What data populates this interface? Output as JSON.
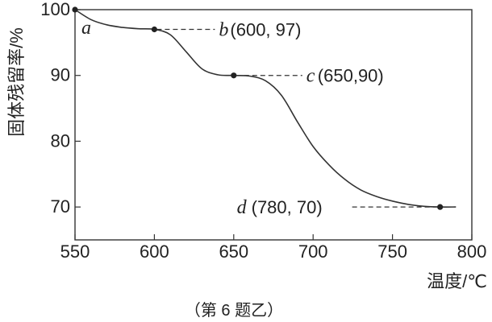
{
  "chart_data": {
    "type": "line",
    "title": "",
    "xlabel": "温度/℃",
    "ylabel": "固体残留率/%",
    "xlim": [
      550,
      800
    ],
    "ylim": [
      65,
      100
    ],
    "xticks": [
      "550",
      "600",
      "650",
      "700",
      "750",
      "800"
    ],
    "yticks": [
      "70",
      "80",
      "90",
      "100"
    ],
    "grid": false,
    "series": [
      {
        "x": [
          550,
          560,
          570,
          580,
          590,
          600,
          610,
          620,
          630,
          640,
          650,
          660,
          670,
          680,
          690,
          700,
          710,
          720,
          730,
          740,
          750,
          760,
          770,
          780,
          790
        ],
        "y": [
          100,
          98.5,
          97.7,
          97.3,
          97.1,
          97.0,
          96.2,
          93.6,
          91.0,
          90.1,
          90.0,
          89.9,
          89.2,
          87.0,
          83.0,
          79.2,
          76.4,
          74.2,
          72.6,
          71.6,
          70.9,
          70.4,
          70.1,
          70.0,
          70.0
        ]
      }
    ],
    "points": [
      {
        "letter": "a",
        "x": 550,
        "y": 100,
        "text": ""
      },
      {
        "letter": "b",
        "x": 600,
        "y": 97,
        "text": "(600, 97)"
      },
      {
        "letter": "c",
        "x": 650,
        "y": 90,
        "text": "(650,90)"
      },
      {
        "letter": "d",
        "x": 780,
        "y": 70,
        "text": "(780, 70)"
      }
    ]
  },
  "caption": "（第 6 题乙）"
}
